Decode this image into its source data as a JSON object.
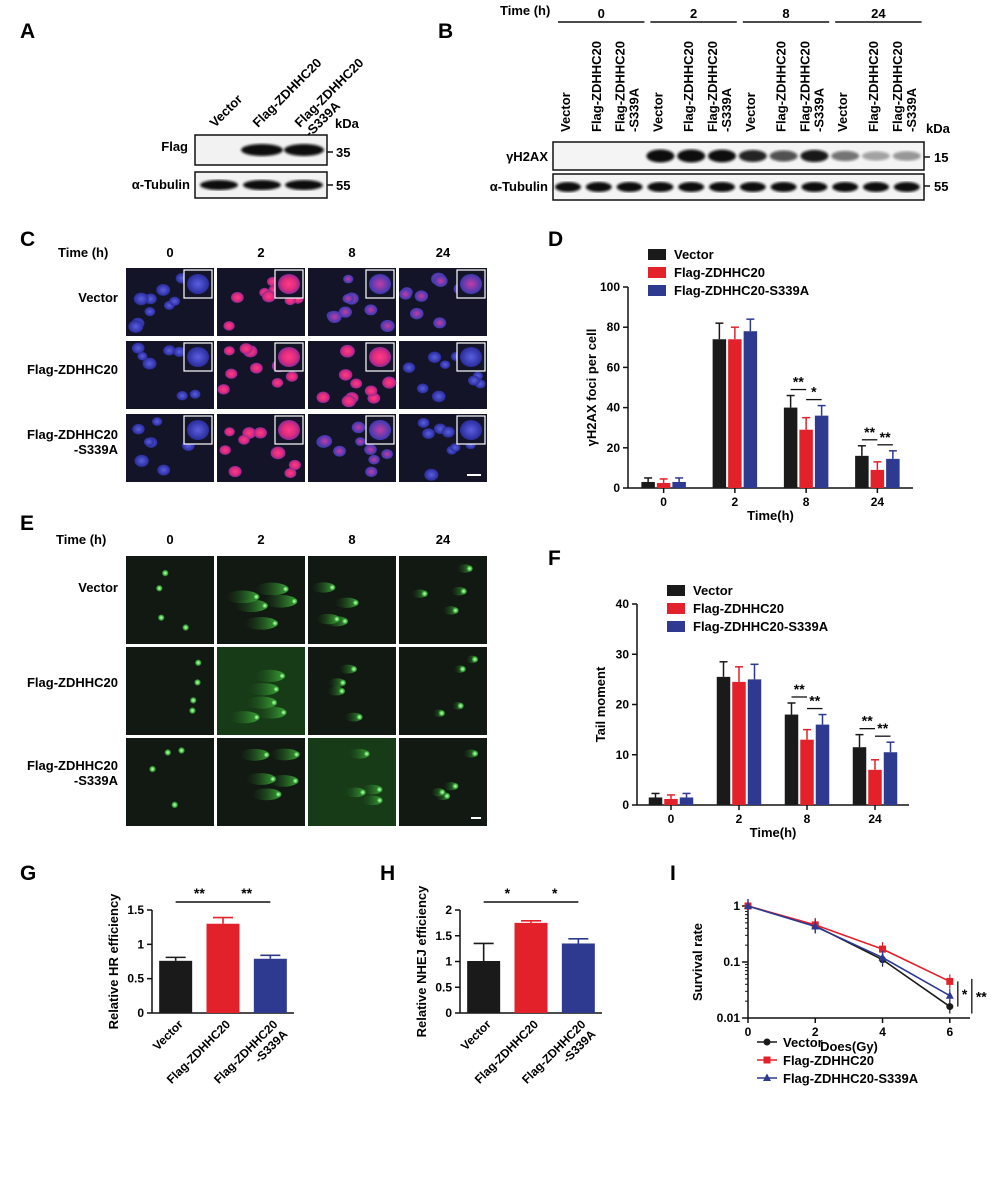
{
  "panels": {
    "A": {
      "letter": "A",
      "lanes": [
        "Vector",
        "Flag-ZDHHC20",
        "Flag-ZDHHC20\n-S339A"
      ],
      "rows": [
        {
          "label": "Flag",
          "kda": "35"
        },
        {
          "label": "α-Tubulin",
          "kda": "55"
        }
      ],
      "kda_header": "kDa"
    },
    "B": {
      "letter": "B",
      "time_label": "Time (h)",
      "times": [
        "0",
        "2",
        "8",
        "24"
      ],
      "lane_group": [
        "Vector",
        "Flag-ZDHHC20",
        "Flag-ZDHHC20\n-S339A"
      ],
      "rows": [
        {
          "label": "γH2AX",
          "kda": "15"
        },
        {
          "label": "α-Tubulin",
          "kda": "55"
        }
      ],
      "kda_header": "kDa"
    },
    "C": {
      "letter": "C",
      "time_label": "Time (h)",
      "times": [
        "0",
        "2",
        "8",
        "24"
      ],
      "rows": [
        "Vector",
        "Flag-ZDHHC20",
        "Flag-ZDHHC20\n-S339A"
      ]
    },
    "E": {
      "letter": "E",
      "time_label": "Time (h)",
      "times": [
        "0",
        "2",
        "8",
        "24"
      ],
      "rows": [
        "Vector",
        "Flag-ZDHHC20",
        "Flag-ZDHHC20\n-S339A"
      ]
    }
  },
  "colors": {
    "vector": "#1a1a1a",
    "zdhhc20": "#e3212b",
    "s339a": "#2e3a8f"
  },
  "chart_data": [
    {
      "id": "D",
      "letter": "D",
      "type": "bar",
      "categories": [
        "0",
        "2",
        "8",
        "24"
      ],
      "series": [
        {
          "name": "Vector",
          "values": [
            3,
            74,
            40,
            16
          ],
          "errors": [
            2,
            8,
            6,
            5
          ]
        },
        {
          "name": "Flag-ZDHHC20",
          "values": [
            2.5,
            74,
            29,
            9
          ],
          "errors": [
            2,
            6,
            6,
            4
          ]
        },
        {
          "name": "Flag-ZDHHC20-S339A",
          "values": [
            3,
            78,
            36,
            14.5
          ],
          "errors": [
            2,
            6,
            5,
            4
          ]
        }
      ],
      "xlabel": "Time(h)",
      "ylabel": "γH2AX foci per cell",
      "ylim": [
        0,
        100
      ],
      "yticks": [
        0,
        20,
        40,
        60,
        80,
        100
      ],
      "significance": [
        {
          "category": 2,
          "pair": [
            0,
            1
          ],
          "label": "**"
        },
        {
          "category": 2,
          "pair": [
            1,
            2
          ],
          "label": "*"
        },
        {
          "category": 3,
          "pair": [
            0,
            1
          ],
          "label": "**"
        },
        {
          "category": 3,
          "pair": [
            1,
            2
          ],
          "label": "**"
        }
      ],
      "legend": "top"
    },
    {
      "id": "F",
      "letter": "F",
      "type": "bar",
      "categories": [
        "0",
        "2",
        "8",
        "24"
      ],
      "series": [
        {
          "name": "Vector",
          "values": [
            1.5,
            25.5,
            18,
            11.5
          ],
          "errors": [
            0.8,
            3,
            2.3,
            2.5
          ]
        },
        {
          "name": "Flag-ZDHHC20",
          "values": [
            1.2,
            24.5,
            13,
            7
          ],
          "errors": [
            0.8,
            3,
            2,
            2
          ]
        },
        {
          "name": "Flag-ZDHHC20-S339A",
          "values": [
            1.5,
            25,
            16,
            10.5
          ],
          "errors": [
            0.8,
            3,
            2,
            2
          ]
        }
      ],
      "xlabel": "Time(h)",
      "ylabel": "Tail moment",
      "ylim": [
        0,
        40
      ],
      "yticks": [
        0,
        10,
        20,
        30,
        40
      ],
      "significance": [
        {
          "category": 2,
          "pair": [
            0,
            1
          ],
          "label": "**"
        },
        {
          "category": 2,
          "pair": [
            1,
            2
          ],
          "label": "**"
        },
        {
          "category": 3,
          "pair": [
            0,
            1
          ],
          "label": "**"
        },
        {
          "category": 3,
          "pair": [
            1,
            2
          ],
          "label": "**"
        }
      ],
      "legend": "top"
    },
    {
      "id": "G",
      "letter": "G",
      "type": "bar",
      "categories": [
        "Vector",
        "Flag-ZDHHC20",
        "Flag-ZDHHC20\n-S339A"
      ],
      "values": [
        0.76,
        1.3,
        0.79
      ],
      "errors": [
        0.05,
        0.09,
        0.05
      ],
      "ylabel": "Relative  HR efficiency",
      "ylim": [
        0,
        1.5
      ],
      "yticks": [
        0,
        0.5,
        1,
        1.5
      ],
      "yticklabels": [
        "0",
        "0.5",
        "1",
        "1.5"
      ],
      "significance": [
        {
          "pair": [
            0,
            1
          ],
          "label": "**"
        },
        {
          "pair": [
            1,
            2
          ],
          "label": "**"
        }
      ]
    },
    {
      "id": "H",
      "letter": "H",
      "type": "bar",
      "categories": [
        "Vector",
        "Flag-ZDHHC20",
        "Flag-ZDHHC20\n-S339A"
      ],
      "values": [
        1.01,
        1.75,
        1.35
      ],
      "errors": [
        0.34,
        0.04,
        0.09
      ],
      "ylabel": "Relative  NHEJ efficiency",
      "ylim": [
        0,
        2
      ],
      "yticks": [
        0,
        0.5,
        1,
        1.5,
        2
      ],
      "yticklabels": [
        "0",
        "0.5",
        "1",
        "1.5",
        "2"
      ],
      "significance": [
        {
          "pair": [
            0,
            1
          ],
          "label": "*"
        },
        {
          "pair": [
            1,
            2
          ],
          "label": "*"
        }
      ]
    },
    {
      "id": "I",
      "letter": "I",
      "type": "line",
      "x": [
        0,
        2,
        4,
        6
      ],
      "series": [
        {
          "name": "Vector",
          "values": [
            1,
            0.44,
            0.11,
            0.016
          ],
          "marker": "circle"
        },
        {
          "name": "Flag-ZDHHC20",
          "values": [
            1,
            0.46,
            0.17,
            0.045
          ],
          "marker": "square"
        },
        {
          "name": "Flag-ZDHHC20-S339A",
          "values": [
            1,
            0.43,
            0.12,
            0.025
          ],
          "marker": "triangle"
        }
      ],
      "xlabel": "Does(Gy)",
      "ylabel": "Survival rate",
      "xlim": [
        0,
        6.6
      ],
      "xticks": [
        0,
        2,
        4,
        6
      ],
      "ylim": [
        0.01,
        1
      ],
      "yscale": "log",
      "yticks": [
        0.01,
        0.1,
        1
      ],
      "yticklabels": [
        "0.01",
        "0.1",
        "1"
      ],
      "significance": [
        "*",
        "**"
      ],
      "legend": "bottom-left"
    }
  ]
}
